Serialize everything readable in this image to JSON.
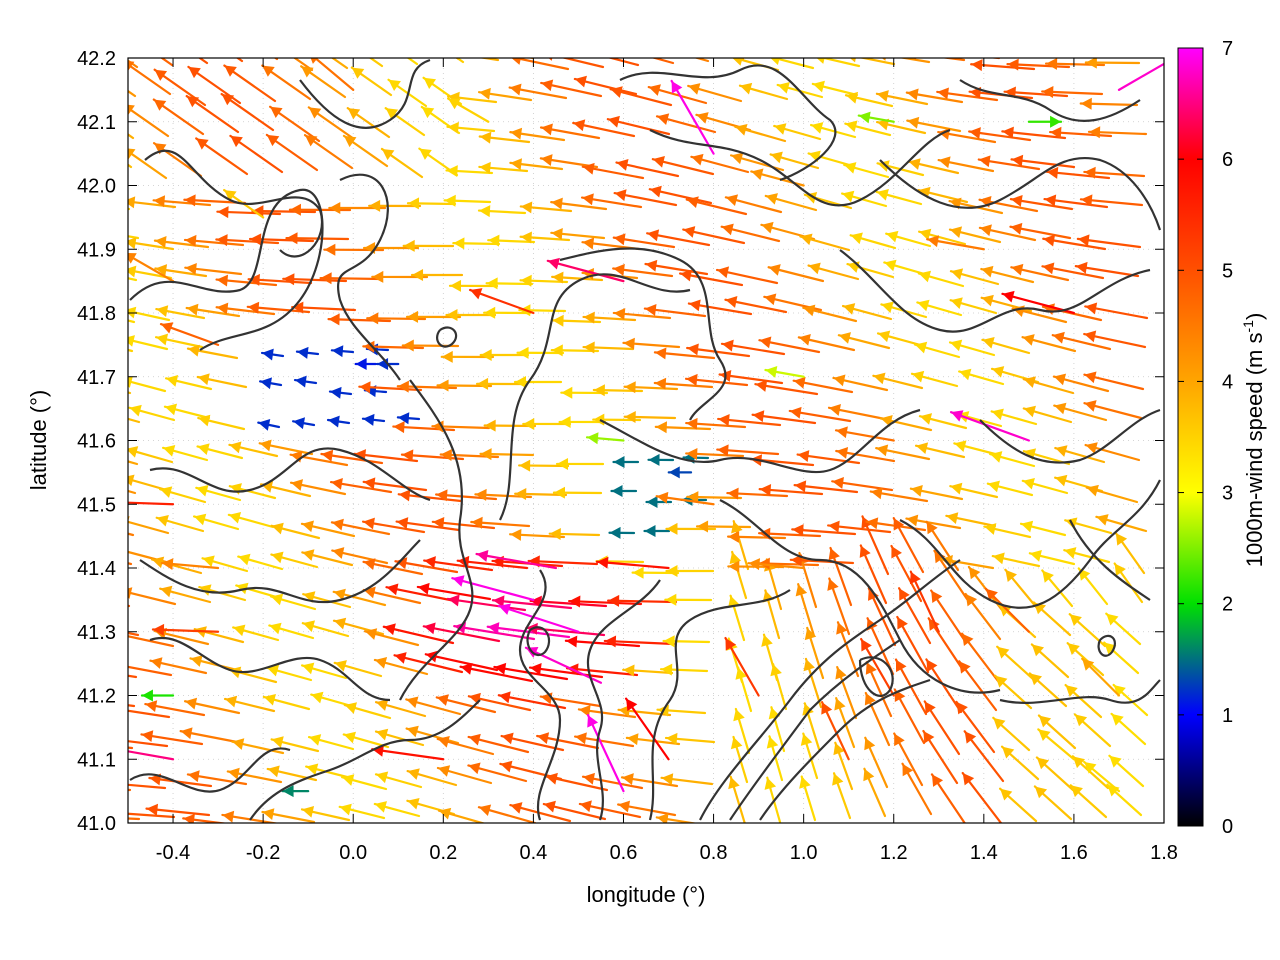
{
  "chart_data": {
    "type": "vector-field",
    "title": "",
    "xlabel": "longitude (°)",
    "ylabel": "latitude (°)",
    "xlim": [
      -0.5,
      1.8
    ],
    "ylim": [
      41.0,
      42.2
    ],
    "xticks": [
      -0.4,
      -0.2,
      0.0,
      0.2,
      0.4,
      0.6,
      0.8,
      1.0,
      1.2,
      1.4,
      1.6,
      1.8
    ],
    "xtick_labels": [
      "-0.4",
      "-0.2",
      "0.0",
      "0.2",
      "0.4",
      "0.6",
      "0.8",
      "1.0",
      "1.2",
      "1.4",
      "1.6",
      "1.8"
    ],
    "yticks": [
      41.0,
      41.1,
      41.2,
      41.3,
      41.4,
      41.5,
      41.6,
      41.7,
      41.8,
      41.9,
      42.0,
      42.1,
      42.2
    ],
    "ytick_labels": [
      "41.0",
      "41.1",
      "41.2",
      "41.3",
      "41.4",
      "41.5",
      "41.6",
      "41.7",
      "41.8",
      "41.9",
      "42.0",
      "42.1",
      "42.2"
    ],
    "grid": true,
    "colorbar": {
      "label_main": "1000m-wind speed (m s",
      "label_exp": "-1",
      "label_close": ")",
      "range": [
        0,
        7
      ],
      "ticks": [
        0,
        1,
        2,
        3,
        4,
        5,
        6,
        7
      ],
      "tick_labels": [
        "0",
        "1",
        "2",
        "3",
        "4",
        "5",
        "6",
        "7"
      ],
      "colors": [
        "#000000",
        "#0000ff",
        "#00e000",
        "#ffff00",
        "#ffa500",
        "#ff5000",
        "#ff0000",
        "#ff00ff"
      ]
    },
    "contour_color": "#333333",
    "vectors": [
      {
        "lon": -0.4,
        "lat": 41.85,
        "speed": 4.4,
        "dir_deg": 150
      },
      {
        "lon": -0.3,
        "lat": 41.75,
        "speed": 4.8,
        "dir_deg": 160
      },
      {
        "lon": -0.2,
        "lat": 41.95,
        "speed": 3.6,
        "dir_deg": 145
      },
      {
        "lon": 0.05,
        "lat": 41.72,
        "speed": 1.1,
        "dir_deg": 180
      },
      {
        "lon": 0.1,
        "lat": 41.72,
        "speed": 1.2,
        "dir_deg": 180
      },
      {
        "lon": -0.4,
        "lat": 41.5,
        "speed": 5.6,
        "dir_deg": 178
      },
      {
        "lon": -0.3,
        "lat": 41.4,
        "speed": 4.4,
        "dir_deg": 175
      },
      {
        "lon": -0.3,
        "lat": 41.3,
        "speed": 5.2,
        "dir_deg": 178
      },
      {
        "lon": -0.4,
        "lat": 41.2,
        "speed": 2.1,
        "dir_deg": 180
      },
      {
        "lon": -0.4,
        "lat": 41.1,
        "speed": 6.5,
        "dir_deg": 170
      },
      {
        "lon": 0.4,
        "lat": 41.35,
        "speed": 6.9,
        "dir_deg": 165
      },
      {
        "lon": 0.5,
        "lat": 41.3,
        "speed": 6.9,
        "dir_deg": 162
      },
      {
        "lon": 0.55,
        "lat": 41.22,
        "speed": 6.8,
        "dir_deg": 155
      },
      {
        "lon": 0.45,
        "lat": 41.4,
        "speed": 6.6,
        "dir_deg": 170
      },
      {
        "lon": 0.7,
        "lat": 41.4,
        "speed": 5.8,
        "dir_deg": 175
      },
      {
        "lon": 0.8,
        "lat": 41.5,
        "speed": 4.5,
        "dir_deg": 172
      },
      {
        "lon": 0.6,
        "lat": 41.6,
        "speed": 2.6,
        "dir_deg": 175
      },
      {
        "lon": 0.75,
        "lat": 41.55,
        "speed": 1.3,
        "dir_deg": 180
      },
      {
        "lon": 0.4,
        "lat": 41.8,
        "speed": 5.4,
        "dir_deg": 160
      },
      {
        "lon": 0.6,
        "lat": 41.85,
        "speed": 6.4,
        "dir_deg": 165
      },
      {
        "lon": 0.8,
        "lat": 42.05,
        "speed": 6.9,
        "dir_deg": 120
      },
      {
        "lon": 1.0,
        "lat": 42.0,
        "speed": 4.2,
        "dir_deg": 165
      },
      {
        "lon": 1.2,
        "lat": 42.1,
        "speed": 2.5,
        "dir_deg": 170
      },
      {
        "lon": 1.5,
        "lat": 42.1,
        "speed": 2.2,
        "dir_deg": 0
      },
      {
        "lon": 1.4,
        "lat": 41.9,
        "speed": 4.5,
        "dir_deg": 170
      },
      {
        "lon": 1.6,
        "lat": 41.8,
        "speed": 6.0,
        "dir_deg": 165
      },
      {
        "lon": 1.5,
        "lat": 41.6,
        "speed": 6.8,
        "dir_deg": 160
      },
      {
        "lon": 1.2,
        "lat": 41.6,
        "speed": 4.6,
        "dir_deg": 170
      },
      {
        "lon": 1.0,
        "lat": 41.7,
        "speed": 2.8,
        "dir_deg": 170
      },
      {
        "lon": 1.0,
        "lat": 41.4,
        "speed": 4.3,
        "dir_deg": 175
      },
      {
        "lon": 1.3,
        "lat": 41.3,
        "speed": 5.3,
        "dir_deg": 115
      },
      {
        "lon": 1.2,
        "lat": 41.2,
        "speed": 5.2,
        "dir_deg": 120
      },
      {
        "lon": 1.1,
        "lat": 41.1,
        "speed": 5.0,
        "dir_deg": 115
      },
      {
        "lon": 1.5,
        "lat": 41.3,
        "speed": 4.8,
        "dir_deg": 135
      },
      {
        "lon": 1.6,
        "lat": 41.1,
        "speed": 3.5,
        "dir_deg": 140
      },
      {
        "lon": 1.7,
        "lat": 41.05,
        "speed": 3.4,
        "dir_deg": 140
      },
      {
        "lon": 1.7,
        "lat": 41.2,
        "speed": 4.0,
        "dir_deg": 135
      },
      {
        "lon": 0.9,
        "lat": 41.2,
        "speed": 5.3,
        "dir_deg": 120
      },
      {
        "lon": 0.7,
        "lat": 41.1,
        "speed": 6.0,
        "dir_deg": 125
      },
      {
        "lon": 0.6,
        "lat": 41.05,
        "speed": 6.9,
        "dir_deg": 115
      },
      {
        "lon": -0.1,
        "lat": 41.05,
        "speed": 1.6,
        "dir_deg": 180
      },
      {
        "lon": 0.2,
        "lat": 41.1,
        "speed": 5.8,
        "dir_deg": 172
      },
      {
        "lon": 0.3,
        "lat": 42.1,
        "speed": 3.5,
        "dir_deg": 150
      },
      {
        "lon": 0.0,
        "lat": 42.15,
        "speed": 4.6,
        "dir_deg": 140
      },
      {
        "lon": 1.7,
        "lat": 42.15,
        "speed": 6.8,
        "dir_deg": 30
      }
    ]
  }
}
